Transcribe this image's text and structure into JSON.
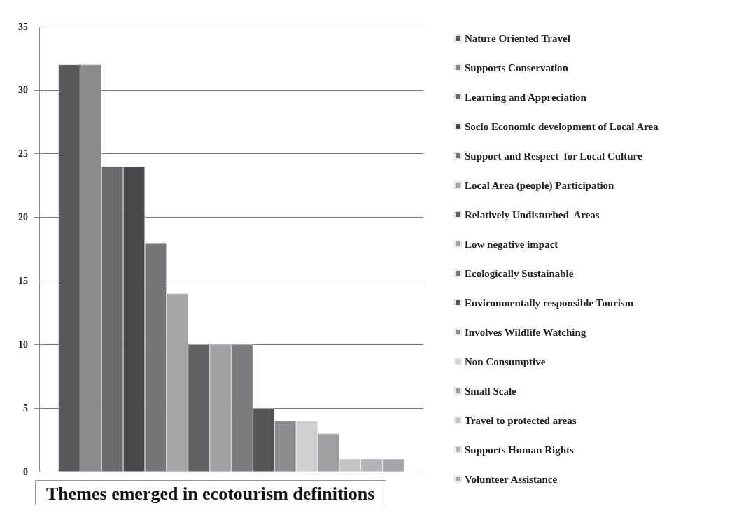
{
  "chart_data": {
    "type": "bar",
    "title": "Themes emerged in ecotourism definitions",
    "categories": [
      null
    ],
    "ylim": [
      0,
      35
    ],
    "yticks": [
      0,
      5,
      10,
      15,
      20,
      25,
      30,
      35
    ],
    "grid": "y",
    "legend": "right",
    "series": [
      {
        "name": "Nature Oriented Travel",
        "color": "#58585c",
        "values": [
          32
        ]
      },
      {
        "name": "Supports Conservation",
        "color": "#8a8a8e",
        "values": [
          32
        ]
      },
      {
        "name": "Learning and Appreciation",
        "color": "#6a6a6e",
        "values": [
          24
        ]
      },
      {
        "name": "Socio Economic development of Local Area",
        "color": "#48484c",
        "values": [
          24
        ]
      },
      {
        "name": "Support and Respect  for Local Culture",
        "color": "#76767a",
        "values": [
          18
        ]
      },
      {
        "name": "Local Area (people) Participation",
        "color": "#a6a6aa",
        "values": [
          14
        ]
      },
      {
        "name": "Relatively Undisturbed  Areas",
        "color": "#636366",
        "values": [
          10
        ]
      },
      {
        "name": "Low negative impact",
        "color": "#a2a2a6",
        "values": [
          10
        ]
      },
      {
        "name": "Ecologically Sustainable",
        "color": "#7c7c80",
        "values": [
          10
        ]
      },
      {
        "name": "Environmentally responsible Tourism",
        "color": "#555558",
        "values": [
          5
        ]
      },
      {
        "name": "Involves Wildlife Watching",
        "color": "#8c8c90",
        "values": [
          4
        ]
      },
      {
        "name": "Non Consumptive",
        "color": "#d0d0d2",
        "values": [
          4
        ]
      },
      {
        "name": "Small Scale",
        "color": "#a0a0a4",
        "values": [
          3
        ]
      },
      {
        "name": "Travel to protected areas",
        "color": "#c4c4c6",
        "values": [
          1
        ]
      },
      {
        "name": "Supports Human Rights",
        "color": "#b4b4b8",
        "values": [
          1
        ]
      },
      {
        "name": "Volunteer Assistance",
        "color": "#a6a6aa",
        "values": [
          1
        ]
      }
    ]
  }
}
